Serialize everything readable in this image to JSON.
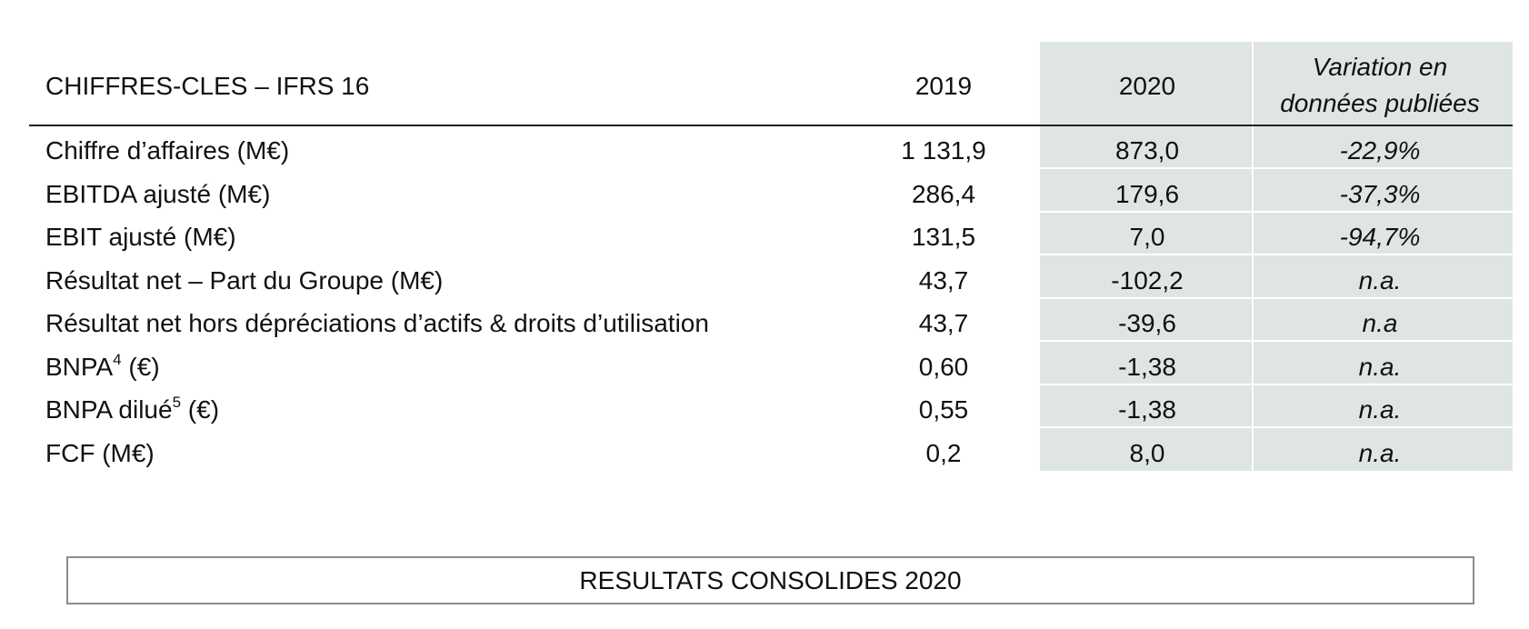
{
  "table": {
    "header": {
      "title": "CHIFFRES-CLES – IFRS 16",
      "col_2019": "2019",
      "col_2020": "2020",
      "col_variation_line1": "Variation en",
      "col_variation_line2": "données publiées"
    },
    "rows": [
      {
        "label": "Chiffre d’affaires (M€)",
        "sup": "",
        "suffix": "",
        "v2019": "1 131,9",
        "v2020": "873,0",
        "variation": "-22,9%"
      },
      {
        "label": "EBITDA ajusté (M€)",
        "sup": "",
        "suffix": "",
        "v2019": "286,4",
        "v2020": "179,6",
        "variation": "-37,3%"
      },
      {
        "label": "EBIT ajusté (M€)",
        "sup": "",
        "suffix": "",
        "v2019": "131,5",
        "v2020": "7,0",
        "variation": "-94,7%"
      },
      {
        "label": "Résultat net – Part du Groupe (M€)",
        "sup": "",
        "suffix": "",
        "v2019": "43,7",
        "v2020": "-102,2",
        "variation": "n.a."
      },
      {
        "label": "Résultat net hors dépréciations d’actifs & droits d’utilisation",
        "sup": "",
        "suffix": "",
        "v2019": "43,7",
        "v2020": "-39,6",
        "variation": "n.a"
      },
      {
        "label": "BNPA",
        "sup": "4",
        "suffix": " (€)",
        "v2019": "0,60",
        "v2020": "-1,38",
        "variation": "n.a."
      },
      {
        "label": "BNPA dilué",
        "sup": "5",
        "suffix": " (€)",
        "v2019": "0,55",
        "v2020": "-1,38",
        "variation": "n.a."
      },
      {
        "label": "FCF (M€)",
        "sup": "",
        "suffix": "",
        "v2019": "0,2",
        "v2020": "8,0",
        "variation": "n.a."
      }
    ]
  },
  "banner": {
    "title": "RESULTATS CONSOLIDES 2020"
  },
  "colors": {
    "shade": "#dfe5e3",
    "rule": "#222222",
    "banner_border": "#8c8c8c"
  }
}
